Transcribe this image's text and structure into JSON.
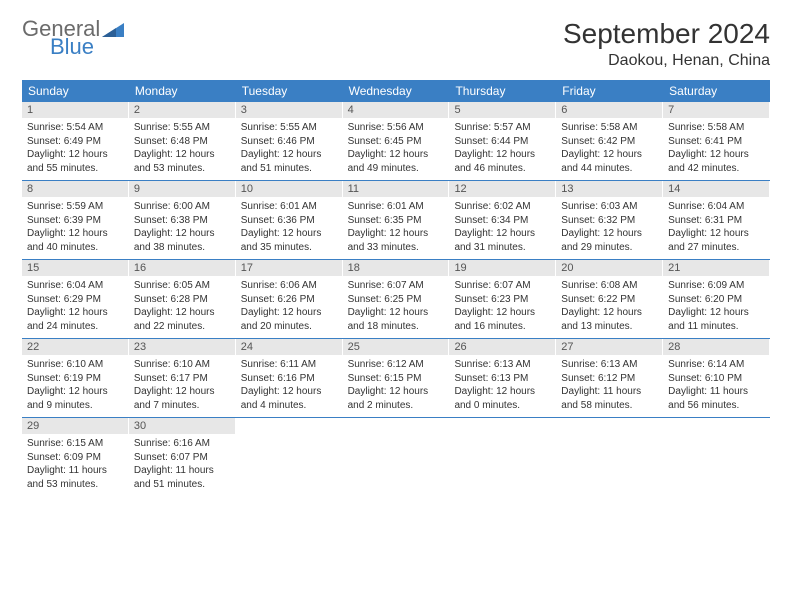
{
  "logo": {
    "general": "General",
    "blue": "Blue"
  },
  "title": "September 2024",
  "location": "Daokou, Henan, China",
  "colors": {
    "header_bg": "#3a7fc4",
    "header_text": "#ffffff",
    "daynum_bg": "#e7e7e7",
    "body_text": "#333333",
    "logo_gray": "#6b6b6b",
    "logo_blue": "#3a7fc4"
  },
  "days_of_week": [
    "Sunday",
    "Monday",
    "Tuesday",
    "Wednesday",
    "Thursday",
    "Friday",
    "Saturday"
  ],
  "weeks": [
    [
      {
        "n": "1",
        "sr": "Sunrise: 5:54 AM",
        "ss": "Sunset: 6:49 PM",
        "dl": "Daylight: 12 hours and 55 minutes."
      },
      {
        "n": "2",
        "sr": "Sunrise: 5:55 AM",
        "ss": "Sunset: 6:48 PM",
        "dl": "Daylight: 12 hours and 53 minutes."
      },
      {
        "n": "3",
        "sr": "Sunrise: 5:55 AM",
        "ss": "Sunset: 6:46 PM",
        "dl": "Daylight: 12 hours and 51 minutes."
      },
      {
        "n": "4",
        "sr": "Sunrise: 5:56 AM",
        "ss": "Sunset: 6:45 PM",
        "dl": "Daylight: 12 hours and 49 minutes."
      },
      {
        "n": "5",
        "sr": "Sunrise: 5:57 AM",
        "ss": "Sunset: 6:44 PM",
        "dl": "Daylight: 12 hours and 46 minutes."
      },
      {
        "n": "6",
        "sr": "Sunrise: 5:58 AM",
        "ss": "Sunset: 6:42 PM",
        "dl": "Daylight: 12 hours and 44 minutes."
      },
      {
        "n": "7",
        "sr": "Sunrise: 5:58 AM",
        "ss": "Sunset: 6:41 PM",
        "dl": "Daylight: 12 hours and 42 minutes."
      }
    ],
    [
      {
        "n": "8",
        "sr": "Sunrise: 5:59 AM",
        "ss": "Sunset: 6:39 PM",
        "dl": "Daylight: 12 hours and 40 minutes."
      },
      {
        "n": "9",
        "sr": "Sunrise: 6:00 AM",
        "ss": "Sunset: 6:38 PM",
        "dl": "Daylight: 12 hours and 38 minutes."
      },
      {
        "n": "10",
        "sr": "Sunrise: 6:01 AM",
        "ss": "Sunset: 6:36 PM",
        "dl": "Daylight: 12 hours and 35 minutes."
      },
      {
        "n": "11",
        "sr": "Sunrise: 6:01 AM",
        "ss": "Sunset: 6:35 PM",
        "dl": "Daylight: 12 hours and 33 minutes."
      },
      {
        "n": "12",
        "sr": "Sunrise: 6:02 AM",
        "ss": "Sunset: 6:34 PM",
        "dl": "Daylight: 12 hours and 31 minutes."
      },
      {
        "n": "13",
        "sr": "Sunrise: 6:03 AM",
        "ss": "Sunset: 6:32 PM",
        "dl": "Daylight: 12 hours and 29 minutes."
      },
      {
        "n": "14",
        "sr": "Sunrise: 6:04 AM",
        "ss": "Sunset: 6:31 PM",
        "dl": "Daylight: 12 hours and 27 minutes."
      }
    ],
    [
      {
        "n": "15",
        "sr": "Sunrise: 6:04 AM",
        "ss": "Sunset: 6:29 PM",
        "dl": "Daylight: 12 hours and 24 minutes."
      },
      {
        "n": "16",
        "sr": "Sunrise: 6:05 AM",
        "ss": "Sunset: 6:28 PM",
        "dl": "Daylight: 12 hours and 22 minutes."
      },
      {
        "n": "17",
        "sr": "Sunrise: 6:06 AM",
        "ss": "Sunset: 6:26 PM",
        "dl": "Daylight: 12 hours and 20 minutes."
      },
      {
        "n": "18",
        "sr": "Sunrise: 6:07 AM",
        "ss": "Sunset: 6:25 PM",
        "dl": "Daylight: 12 hours and 18 minutes."
      },
      {
        "n": "19",
        "sr": "Sunrise: 6:07 AM",
        "ss": "Sunset: 6:23 PM",
        "dl": "Daylight: 12 hours and 16 minutes."
      },
      {
        "n": "20",
        "sr": "Sunrise: 6:08 AM",
        "ss": "Sunset: 6:22 PM",
        "dl": "Daylight: 12 hours and 13 minutes."
      },
      {
        "n": "21",
        "sr": "Sunrise: 6:09 AM",
        "ss": "Sunset: 6:20 PM",
        "dl": "Daylight: 12 hours and 11 minutes."
      }
    ],
    [
      {
        "n": "22",
        "sr": "Sunrise: 6:10 AM",
        "ss": "Sunset: 6:19 PM",
        "dl": "Daylight: 12 hours and 9 minutes."
      },
      {
        "n": "23",
        "sr": "Sunrise: 6:10 AM",
        "ss": "Sunset: 6:17 PM",
        "dl": "Daylight: 12 hours and 7 minutes."
      },
      {
        "n": "24",
        "sr": "Sunrise: 6:11 AM",
        "ss": "Sunset: 6:16 PM",
        "dl": "Daylight: 12 hours and 4 minutes."
      },
      {
        "n": "25",
        "sr": "Sunrise: 6:12 AM",
        "ss": "Sunset: 6:15 PM",
        "dl": "Daylight: 12 hours and 2 minutes."
      },
      {
        "n": "26",
        "sr": "Sunrise: 6:13 AM",
        "ss": "Sunset: 6:13 PM",
        "dl": "Daylight: 12 hours and 0 minutes."
      },
      {
        "n": "27",
        "sr": "Sunrise: 6:13 AM",
        "ss": "Sunset: 6:12 PM",
        "dl": "Daylight: 11 hours and 58 minutes."
      },
      {
        "n": "28",
        "sr": "Sunrise: 6:14 AM",
        "ss": "Sunset: 6:10 PM",
        "dl": "Daylight: 11 hours and 56 minutes."
      }
    ],
    [
      {
        "n": "29",
        "sr": "Sunrise: 6:15 AM",
        "ss": "Sunset: 6:09 PM",
        "dl": "Daylight: 11 hours and 53 minutes."
      },
      {
        "n": "30",
        "sr": "Sunrise: 6:16 AM",
        "ss": "Sunset: 6:07 PM",
        "dl": "Daylight: 11 hours and 51 minutes."
      },
      {
        "empty": true
      },
      {
        "empty": true
      },
      {
        "empty": true
      },
      {
        "empty": true
      },
      {
        "empty": true
      }
    ]
  ]
}
